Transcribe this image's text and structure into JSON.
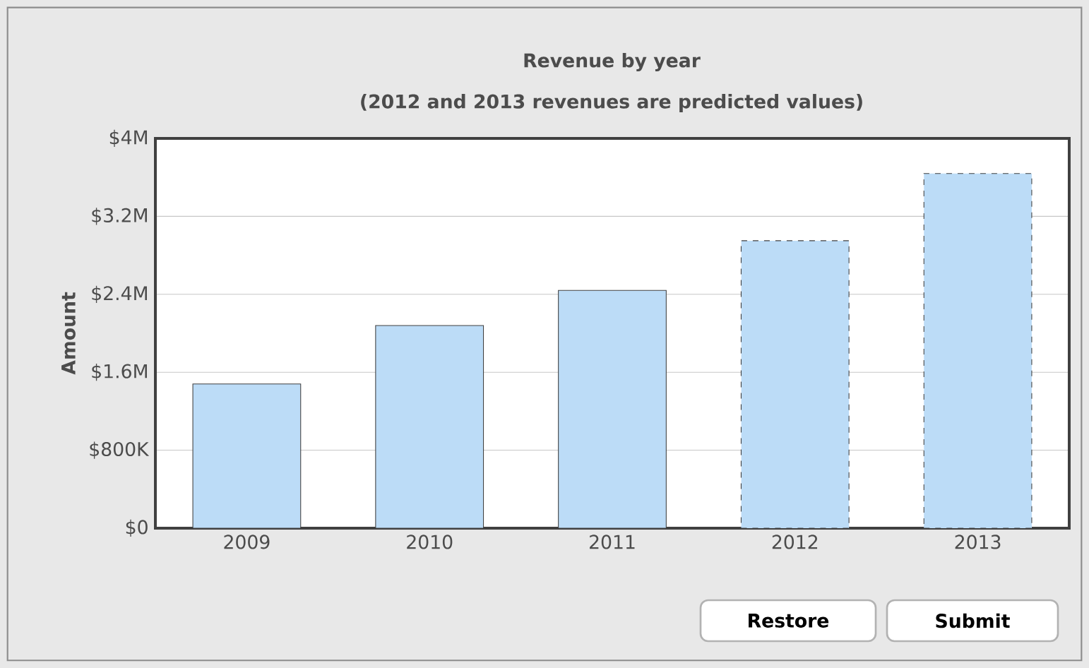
{
  "chart_data": {
    "type": "bar",
    "title": "Revenue by year",
    "subtitle": "(2012 and 2013 revenues are predicted values)",
    "ylabel": "Amount",
    "categories": [
      "2009",
      "2010",
      "2011",
      "2012",
      "2013"
    ],
    "series": [
      {
        "color": "#bcdcf7",
        "line_style": "solid",
        "values": [
          1480000,
          2080000,
          2440000,
          null,
          null
        ]
      },
      {
        "color": "#bcdcf7",
        "line_style": "dashed",
        "values": [
          null,
          null,
          null,
          2950000,
          3640000
        ]
      }
    ],
    "ylim": [
      0,
      4000000
    ],
    "yticks": [
      {
        "value": 0,
        "label": "$0"
      },
      {
        "value": 800000,
        "label": "$800K"
      },
      {
        "value": 1600000,
        "label": "$1.6M"
      },
      {
        "value": 2400000,
        "label": "$2.4M"
      },
      {
        "value": 3200000,
        "label": "$3.2M"
      },
      {
        "value": 4000000,
        "label": "$4M"
      }
    ],
    "grid": "y",
    "annotations": [
      "Restore",
      "Submit"
    ]
  }
}
